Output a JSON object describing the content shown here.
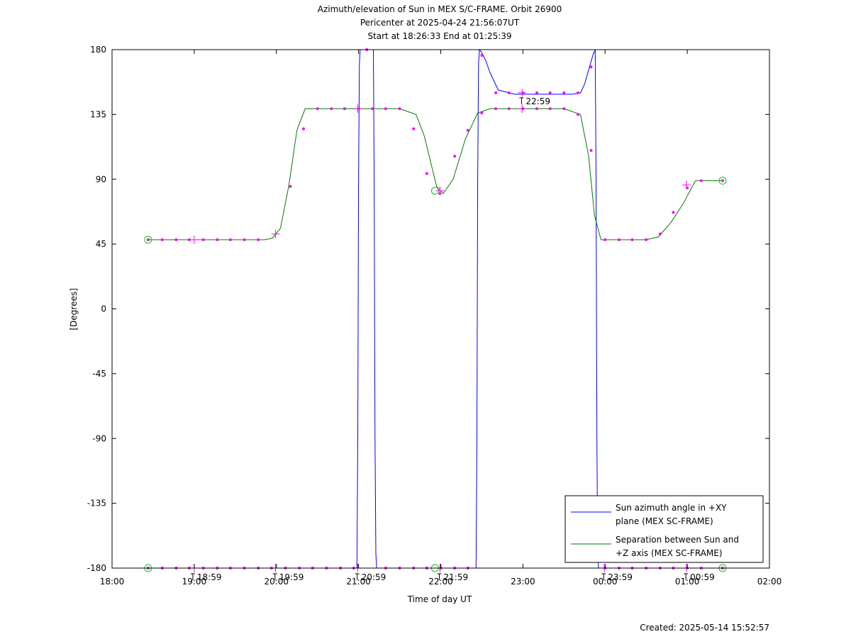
{
  "chart_data": {
    "type": "line",
    "title_lines": [
      "Azimuth/elevation of Sun in MEX S/C-FRAME.  Orbit 26900",
      "Pericenter at 2025-04-24 21:56:07UT",
      "Start at 18:26:33 End at 01:25:39"
    ],
    "xlabel": "Time of day UT",
    "ylabel": "[Degrees]",
    "xlim": [
      18.0,
      26.0
    ],
    "ylim": [
      -180,
      180
    ],
    "x_ticks": [
      {
        "value": 18.0,
        "label": "18:00"
      },
      {
        "value": 19.0,
        "label": "19:00"
      },
      {
        "value": 20.0,
        "label": "20:00"
      },
      {
        "value": 21.0,
        "label": "21:00"
      },
      {
        "value": 22.0,
        "label": "22:00"
      },
      {
        "value": 23.0,
        "label": "23:00"
      },
      {
        "value": 24.0,
        "label": "00:00"
      },
      {
        "value": 25.0,
        "label": "01:00"
      },
      {
        "value": 26.0,
        "label": "02:00"
      }
    ],
    "y_ticks": [
      {
        "value": 180,
        "label": "180"
      },
      {
        "value": 135,
        "label": "135"
      },
      {
        "value": 90,
        "label": "90"
      },
      {
        "value": 45,
        "label": "45"
      },
      {
        "value": 0,
        "label": "0"
      },
      {
        "value": -45,
        "label": "-45"
      },
      {
        "value": -90,
        "label": "-90"
      },
      {
        "value": -135,
        "label": "-135"
      },
      {
        "value": -180,
        "label": "-180"
      }
    ],
    "time_annotations": [
      {
        "x": 18.983,
        "y": -180,
        "label": "18:59"
      },
      {
        "x": 19.983,
        "y": -180,
        "label": "19:59"
      },
      {
        "x": 20.983,
        "y": -180,
        "label": "20:59"
      },
      {
        "x": 21.983,
        "y": -180,
        "label": "21:59"
      },
      {
        "x": 22.983,
        "y": 150,
        "label": "22:59"
      },
      {
        "x": 23.983,
        "y": -180,
        "label": "23:59"
      },
      {
        "x": 24.983,
        "y": -180,
        "label": "00:59"
      }
    ],
    "grid": false,
    "legend_position": "bottom-right",
    "series": [
      {
        "name": "Sun azimuth angle in +XY plane (MEX SC-FRAME)",
        "legend_lines": [
          "Sun azimuth angle in +XY",
          "plane (MEX SC-FRAME)"
        ],
        "color": "#0000ff",
        "x": [
          18.44,
          19.0,
          19.5,
          20.0,
          20.5,
          20.98,
          20.99,
          21.0,
          21.01,
          21.02,
          21.04,
          21.05,
          21.07,
          21.1,
          21.18,
          21.19,
          21.2,
          21.21,
          21.22,
          21.5,
          22.0,
          22.3,
          22.43,
          22.44,
          22.45,
          22.46,
          22.47,
          22.5,
          22.55,
          22.6,
          22.7,
          22.9,
          23.3,
          23.6,
          23.7,
          23.75,
          23.8,
          23.85,
          23.88,
          23.89,
          23.9,
          23.91,
          23.92,
          23.93,
          24.0,
          24.5,
          25.0,
          25.43
        ],
        "y": [
          -180,
          -180,
          -180,
          -180,
          -180,
          -180,
          -90,
          90,
          170,
          180,
          180,
          180,
          180,
          180,
          180,
          90,
          -90,
          -170,
          -180,
          -180,
          -180,
          -180,
          -180,
          -90,
          90,
          170,
          180,
          178,
          172,
          164,
          152,
          149,
          149,
          149,
          150,
          156,
          166,
          176,
          180,
          90,
          -90,
          -170,
          -180,
          -180,
          -180,
          -180,
          -180,
          -180
        ]
      },
      {
        "name": "Separation between Sun and +Z axis (MEX SC-FRAME)",
        "legend_lines": [
          "Separation between Sun and",
          "+Z axis (MEX SC-FRAME)"
        ],
        "color": "#007a00",
        "x": [
          18.44,
          19.0,
          19.5,
          19.85,
          19.95,
          20.05,
          20.15,
          20.25,
          20.35,
          20.45,
          20.6,
          21.0,
          21.5,
          21.7,
          21.8,
          21.95,
          22.03,
          22.15,
          22.3,
          22.45,
          22.6,
          23.0,
          23.5,
          23.7,
          23.8,
          23.87,
          23.95,
          24.05,
          24.5,
          24.65,
          24.8,
          24.95,
          25.1,
          25.43
        ],
        "y": [
          48,
          48,
          48,
          48,
          49,
          56,
          85,
          124,
          139,
          139,
          139,
          139,
          139,
          135,
          120,
          85,
          80,
          90,
          118,
          136,
          139,
          139,
          139,
          135,
          106,
          65,
          48,
          48,
          48,
          50,
          60,
          73,
          89,
          89
        ]
      }
    ],
    "markers": {
      "dots_color": "#ff00ff",
      "start_end_circle_color": "#00cc00",
      "separation_dots": [
        [
          18.44,
          48
        ],
        [
          18.61,
          48
        ],
        [
          18.78,
          48
        ],
        [
          18.94,
          48
        ],
        [
          19.11,
          48
        ],
        [
          19.28,
          48
        ],
        [
          19.44,
          48
        ],
        [
          19.61,
          48
        ],
        [
          19.78,
          48
        ],
        [
          20.17,
          85
        ],
        [
          20.33,
          125
        ],
        [
          20.5,
          139
        ],
        [
          20.67,
          139
        ],
        [
          20.83,
          139
        ],
        [
          21.0,
          139
        ],
        [
          21.17,
          139
        ],
        [
          21.33,
          139
        ],
        [
          21.5,
          139
        ],
        [
          21.67,
          125
        ],
        [
          21.83,
          94
        ],
        [
          21.99,
          80
        ],
        [
          22.17,
          106
        ],
        [
          22.33,
          124
        ],
        [
          22.5,
          136
        ],
        [
          22.67,
          139
        ],
        [
          22.83,
          139
        ],
        [
          23.0,
          139
        ],
        [
          23.17,
          139
        ],
        [
          23.33,
          139
        ],
        [
          23.5,
          139
        ],
        [
          23.67,
          135
        ],
        [
          23.83,
          110
        ],
        [
          24.0,
          48
        ],
        [
          24.17,
          48
        ],
        [
          24.33,
          48
        ],
        [
          24.5,
          48
        ],
        [
          24.67,
          52
        ],
        [
          24.83,
          67
        ],
        [
          25.0,
          84
        ],
        [
          25.17,
          89
        ],
        [
          25.43,
          89
        ]
      ],
      "azimuth_dots": [
        [
          18.44,
          -180
        ],
        [
          18.61,
          -180
        ],
        [
          18.78,
          -180
        ],
        [
          18.94,
          -180
        ],
        [
          19.11,
          -180
        ],
        [
          19.28,
          -180
        ],
        [
          19.44,
          -180
        ],
        [
          19.61,
          -180
        ],
        [
          19.78,
          -180
        ],
        [
          19.94,
          -180
        ],
        [
          20.11,
          -180
        ],
        [
          20.28,
          -180
        ],
        [
          20.44,
          -180
        ],
        [
          20.61,
          -180
        ],
        [
          20.78,
          -180
        ],
        [
          20.94,
          -180
        ],
        [
          21.1,
          180
        ],
        [
          21.33,
          -180
        ],
        [
          21.5,
          -180
        ],
        [
          21.67,
          -180
        ],
        [
          21.83,
          -180
        ],
        [
          22.0,
          -180
        ],
        [
          22.17,
          -180
        ],
        [
          22.33,
          -180
        ],
        [
          22.5,
          176
        ],
        [
          22.67,
          150
        ],
        [
          22.83,
          150
        ],
        [
          23.0,
          150
        ],
        [
          23.17,
          150
        ],
        [
          23.33,
          150
        ],
        [
          23.5,
          150
        ],
        [
          23.67,
          150
        ],
        [
          23.83,
          168
        ],
        [
          24.0,
          -180
        ],
        [
          24.17,
          -180
        ],
        [
          24.33,
          -180
        ],
        [
          24.5,
          -180
        ],
        [
          24.67,
          -180
        ],
        [
          24.83,
          -180
        ],
        [
          25.0,
          -180
        ],
        [
          25.17,
          -180
        ],
        [
          25.43,
          -180
        ]
      ],
      "hour_crosses": [
        [
          19.0,
          48
        ],
        [
          19.99,
          52
        ],
        [
          20.99,
          139
        ],
        [
          21.99,
          82
        ],
        [
          22.99,
          139
        ],
        [
          22.99,
          150
        ],
        [
          24.99,
          86
        ],
        [
          19.0,
          -180
        ],
        [
          19.99,
          -180
        ],
        [
          20.99,
          -180
        ],
        [
          21.99,
          -180
        ],
        [
          23.99,
          -180
        ],
        [
          24.99,
          -180
        ]
      ],
      "circles": [
        [
          18.44,
          48
        ],
        [
          18.44,
          -180
        ],
        [
          21.93,
          82
        ],
        [
          21.93,
          -180
        ],
        [
          25.43,
          89
        ],
        [
          25.43,
          -180
        ]
      ]
    }
  },
  "footer": {
    "created": "Created: 2025-05-14 15:52:57"
  }
}
